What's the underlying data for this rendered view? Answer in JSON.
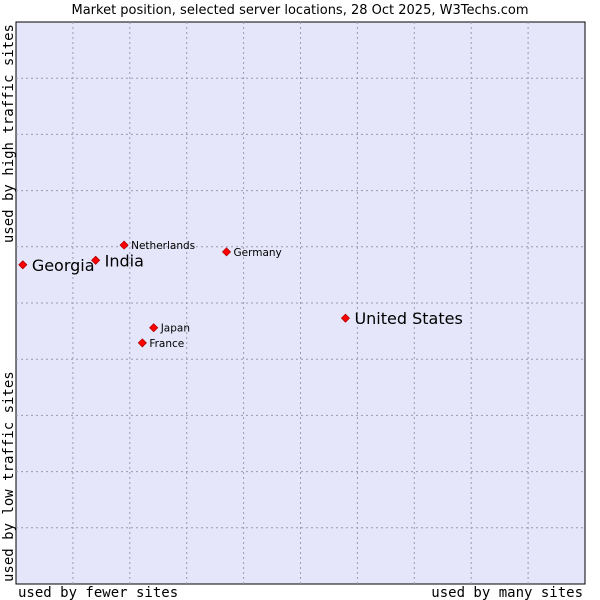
{
  "chart_data": {
    "type": "scatter",
    "title": "Market position, selected server locations, 28 Oct 2025, W3Techs.com",
    "xlabel_left": "used by fewer sites",
    "xlabel_right": "used by many sites",
    "ylabel_bottom": "used by low traffic sites",
    "ylabel_top": "used by high traffic sites",
    "xlim": [
      0,
      100
    ],
    "ylim": [
      0,
      100
    ],
    "grid": true,
    "colors": {
      "plot_background": "#e6e6fa",
      "point": "#ff0000",
      "frame": "#000000"
    },
    "points": [
      {
        "label": "Georgia",
        "x": 1.2,
        "y": 56.8,
        "size": "large"
      },
      {
        "label": "India",
        "x": 14.0,
        "y": 57.6,
        "size": "large"
      },
      {
        "label": "Netherlands",
        "x": 19.0,
        "y": 60.3,
        "size": "small"
      },
      {
        "label": "Germany",
        "x": 37.0,
        "y": 59.1,
        "size": "small"
      },
      {
        "label": "United States",
        "x": 57.9,
        "y": 47.3,
        "size": "large"
      },
      {
        "label": "Japan",
        "x": 24.2,
        "y": 45.6,
        "size": "small"
      },
      {
        "label": "France",
        "x": 22.2,
        "y": 42.9,
        "size": "small"
      }
    ]
  }
}
